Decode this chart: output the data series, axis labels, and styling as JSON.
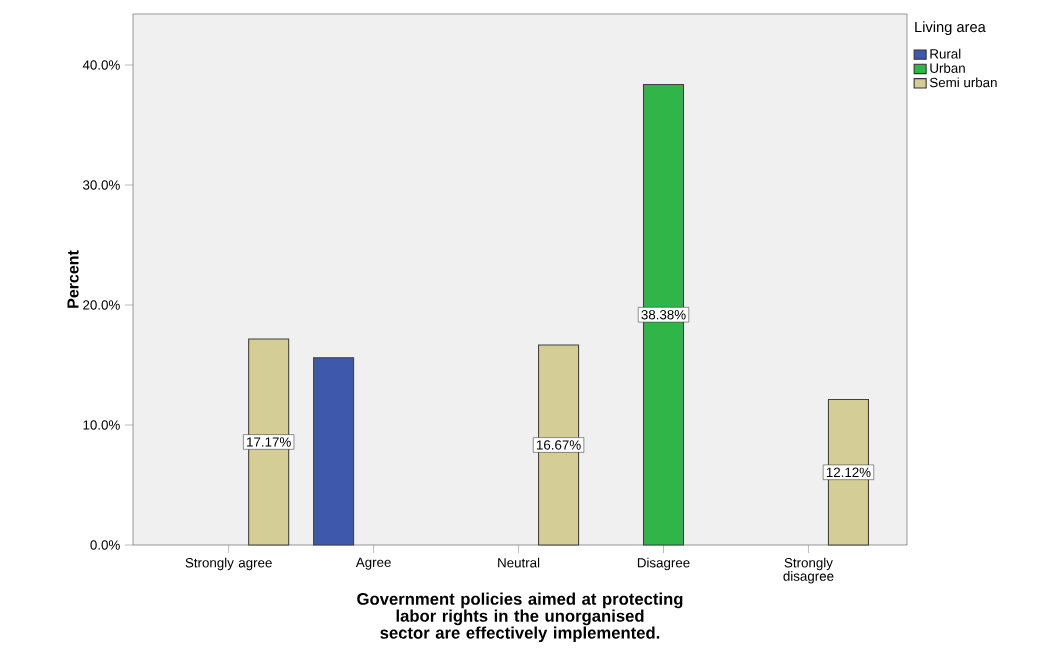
{
  "chart_data": {
    "type": "bar",
    "xlabel": "Government policies aimed at protecting labor rights in the unorganised sector are effectively implemented.",
    "ylabel": "Percent",
    "legend_title": "Living area",
    "categories": [
      "Strongly agree",
      "Agree",
      "Neutral",
      "Disagree",
      "Strongly disagree"
    ],
    "series": [
      {
        "name": "Rural",
        "color": "#3e58ac",
        "values": [
          null,
          15.6,
          null,
          null,
          null
        ],
        "value_labels": [
          null,
          null,
          null,
          null,
          null
        ]
      },
      {
        "name": "Urban",
        "color": "#2fb548",
        "values": [
          null,
          null,
          null,
          38.38,
          null
        ],
        "value_labels": [
          null,
          null,
          null,
          "38.38%",
          null
        ]
      },
      {
        "name": "Semi urban",
        "color": "#d4cd96",
        "values": [
          17.17,
          null,
          16.67,
          null,
          12.12
        ],
        "value_labels": [
          "17.17%",
          null,
          "16.67%",
          null,
          "12.12%"
        ]
      }
    ],
    "ylim": [
      0,
      44.25
    ],
    "yticks": [
      {
        "value": 0,
        "label": "0.0%"
      },
      {
        "value": 10,
        "label": "10.0%"
      },
      {
        "value": 20,
        "label": "20.0%"
      },
      {
        "value": 30,
        "label": "30.0%"
      },
      {
        "value": 40,
        "label": "40.0%"
      }
    ],
    "legend": "right",
    "grid": false
  }
}
